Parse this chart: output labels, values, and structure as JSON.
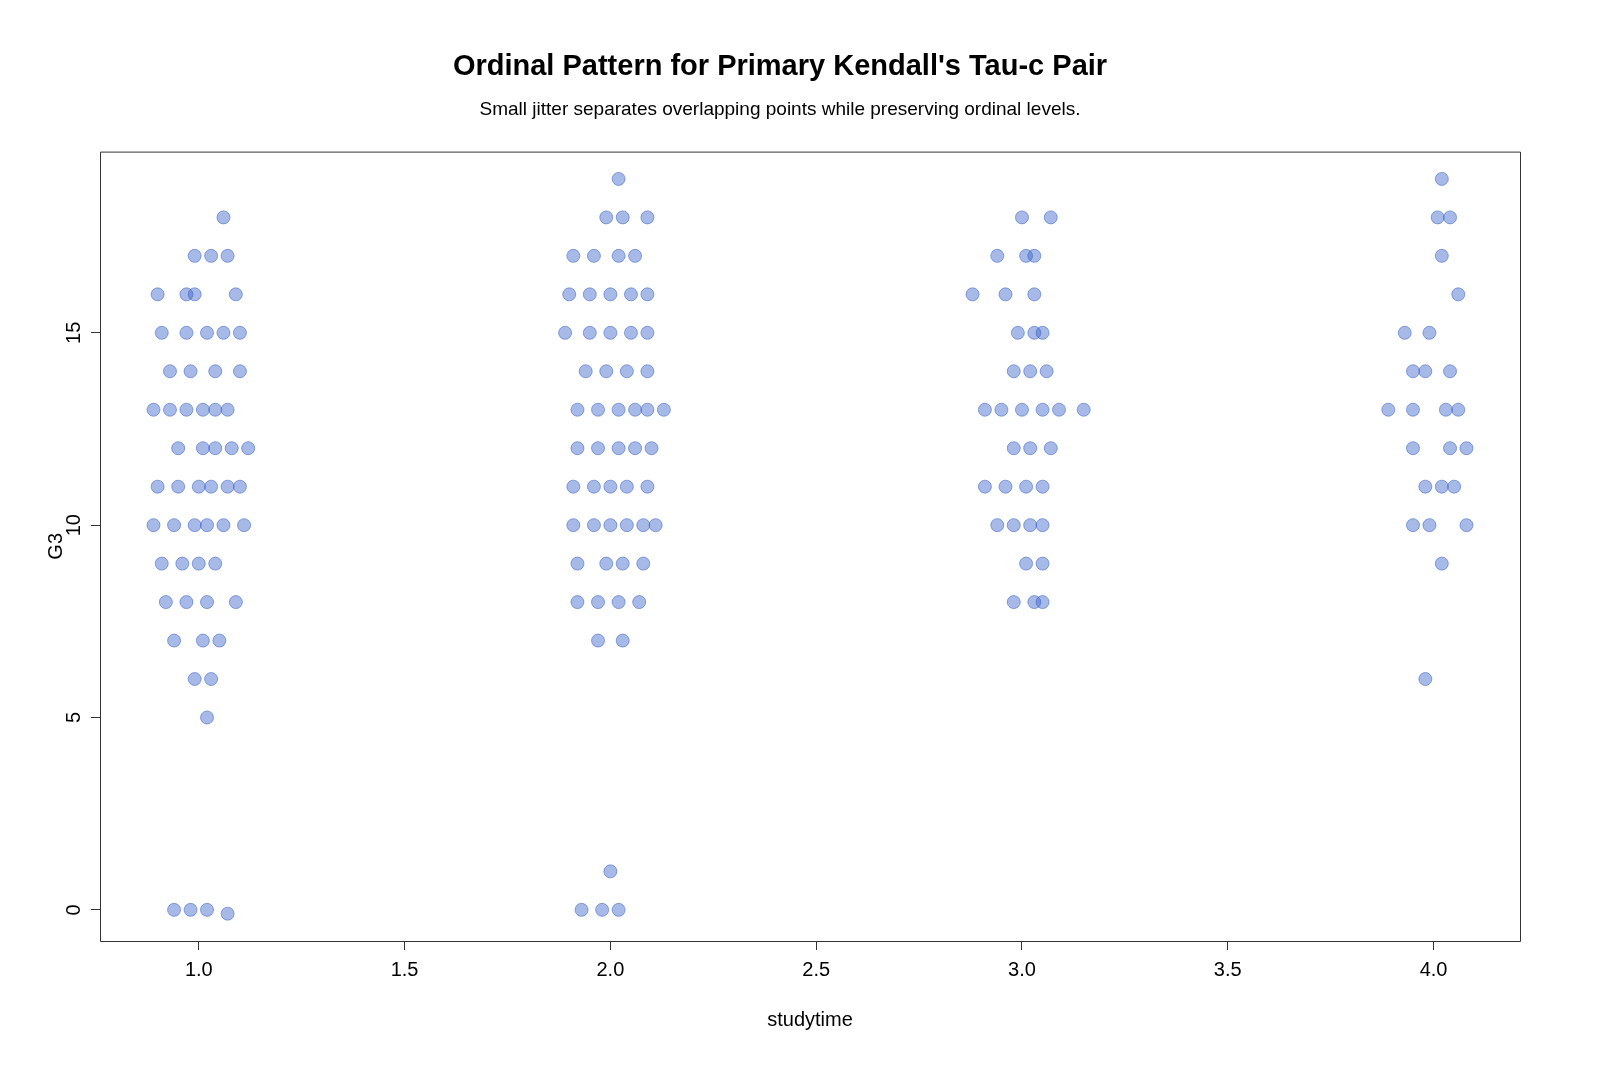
{
  "chart_data": {
    "type": "scatter",
    "title": "Ordinal Pattern for Primary Kendall's Tau-c Pair",
    "subtitle": "Small jitter separates overlapping points while preserving ordinal levels.",
    "xlabel": "studytime",
    "ylabel": "G3",
    "xlim": [
      0.76,
      4.21
    ],
    "ylim": [
      -0.81,
      19.71
    ],
    "xticks": [
      {
        "value": 1,
        "label": "1.0"
      },
      {
        "value": 1.5,
        "label": "1.5"
      },
      {
        "value": 2,
        "label": "2.0"
      },
      {
        "value": 2.5,
        "label": "2.5"
      },
      {
        "value": 3,
        "label": "3.0"
      },
      {
        "value": 3.5,
        "label": "3.5"
      },
      {
        "value": 4,
        "label": "4.0"
      }
    ],
    "yticks": [
      0,
      5,
      10,
      15
    ],
    "grid": false,
    "legend": false,
    "marker": "circle",
    "series": [
      {
        "color": "#3c64c8",
        "x": [
          0.94,
          0.98,
          1.02,
          1.07,
          1.02,
          0.99,
          1.03,
          0.94,
          1.01,
          1.05,
          0.92,
          0.97,
          1.02,
          1.09,
          0.91,
          0.96,
          1.0,
          1.04,
          0.89,
          0.94,
          0.99,
          1.02,
          1.06,
          1.11,
          0.9,
          0.95,
          1.0,
          1.03,
          1.07,
          1.1,
          0.95,
          1.01,
          1.04,
          1.08,
          1.12,
          0.89,
          0.93,
          0.97,
          1.01,
          1.04,
          1.07,
          0.93,
          0.98,
          1.04,
          1.1,
          0.91,
          0.97,
          1.02,
          1.06,
          1.1,
          0.9,
          0.97,
          0.99,
          1.09,
          0.99,
          1.03,
          1.07,
          1.06,
          1.93,
          1.98,
          2.02,
          2.0,
          1.97,
          2.03,
          1.92,
          1.97,
          2.02,
          2.07,
          1.92,
          1.99,
          2.03,
          2.08,
          1.91,
          1.96,
          2.0,
          2.04,
          2.08,
          2.11,
          1.91,
          1.96,
          2.0,
          2.04,
          2.09,
          1.92,
          1.97,
          2.02,
          2.06,
          2.1,
          1.92,
          1.97,
          2.02,
          2.06,
          2.09,
          2.13,
          1.94,
          1.99,
          2.04,
          2.09,
          1.89,
          1.95,
          2.0,
          2.05,
          2.09,
          1.9,
          1.95,
          2.0,
          2.05,
          2.09,
          1.91,
          1.96,
          2.02,
          2.06,
          1.99,
          2.03,
          2.09,
          2.02,
          2.98,
          3.03,
          3.05,
          3.01,
          3.05,
          2.94,
          2.98,
          3.02,
          3.05,
          2.91,
          2.96,
          3.01,
          3.05,
          2.98,
          3.02,
          3.07,
          2.91,
          2.95,
          3.0,
          3.05,
          3.09,
          3.15,
          2.98,
          3.02,
          3.06,
          2.99,
          3.03,
          3.05,
          2.88,
          2.96,
          3.03,
          2.94,
          3.01,
          3.03,
          3.0,
          3.07,
          3.98,
          4.02,
          3.95,
          3.99,
          4.08,
          3.98,
          4.02,
          4.05,
          3.95,
          4.04,
          4.08,
          3.89,
          3.95,
          4.03,
          4.06,
          3.95,
          3.98,
          4.04,
          3.93,
          3.99,
          4.06,
          4.02,
          4.01,
          4.04,
          4.02
        ],
        "values": [
          0,
          0,
          0,
          -0.1,
          5,
          6,
          6,
          7,
          7,
          7,
          8,
          8,
          8,
          8,
          9,
          9,
          9,
          9,
          10,
          10,
          10,
          10,
          10,
          10,
          11,
          11,
          11,
          11,
          11,
          11,
          12,
          12,
          12,
          12,
          12,
          13,
          13,
          13,
          13,
          13,
          13,
          14,
          14,
          14,
          14,
          15,
          15,
          15,
          15,
          15,
          16,
          16,
          16,
          16,
          17,
          17,
          17,
          18,
          0,
          0,
          0,
          1,
          7,
          7,
          8,
          8,
          8,
          8,
          9,
          9,
          9,
          9,
          10,
          10,
          10,
          10,
          10,
          10,
          11,
          11,
          11,
          11,
          11,
          12,
          12,
          12,
          12,
          12,
          13,
          13,
          13,
          13,
          13,
          13,
          14,
          14,
          14,
          14,
          15,
          15,
          15,
          15,
          15,
          16,
          16,
          16,
          16,
          16,
          17,
          17,
          17,
          17,
          18,
          18,
          18,
          19,
          8,
          8,
          8,
          9,
          9,
          10,
          10,
          10,
          10,
          11,
          11,
          11,
          11,
          12,
          12,
          12,
          13,
          13,
          13,
          13,
          13,
          13,
          14,
          14,
          14,
          15,
          15,
          15,
          16,
          16,
          16,
          17,
          17,
          17,
          18,
          18,
          6,
          9,
          10,
          10,
          10,
          11,
          11,
          11,
          12,
          12,
          12,
          13,
          13,
          13,
          13,
          14,
          14,
          14,
          15,
          15,
          16,
          17,
          18,
          18,
          19
        ]
      }
    ]
  }
}
